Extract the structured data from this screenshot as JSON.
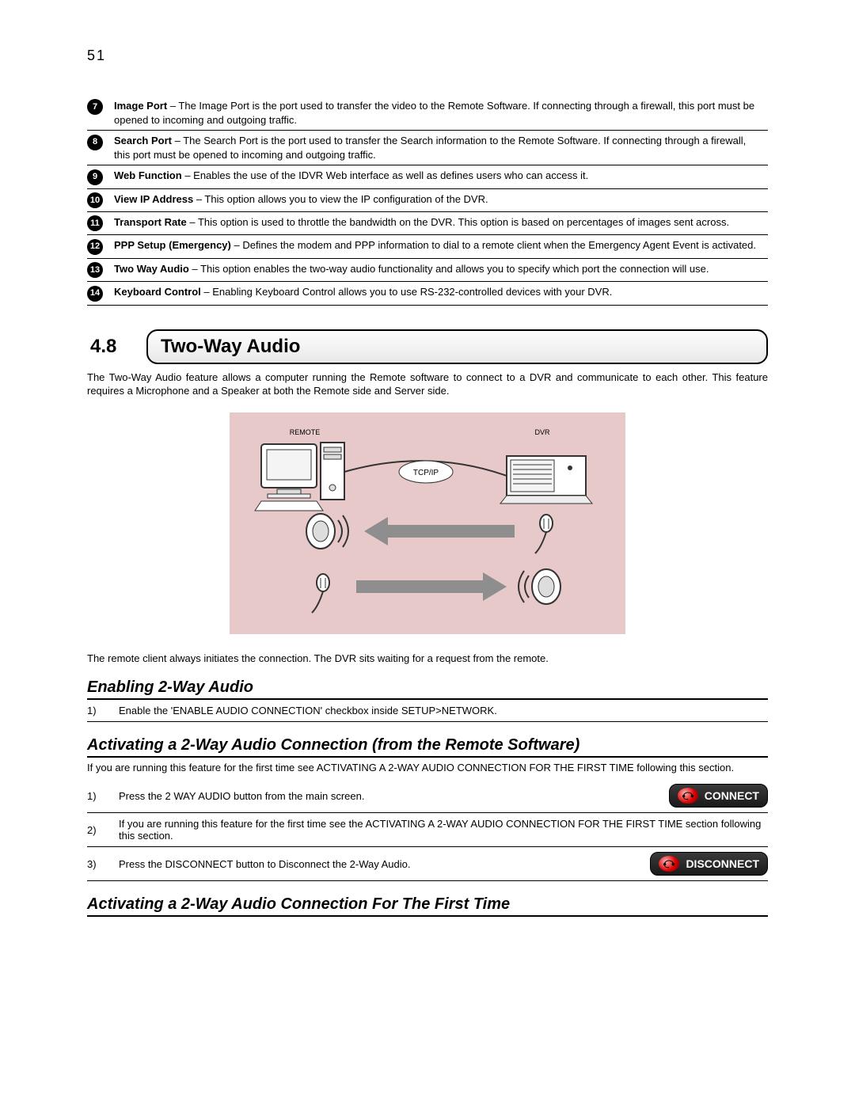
{
  "page_number": "51",
  "definitions": [
    {
      "num": "7",
      "term": "Image Port",
      "text": " – The Image Port is the port used to transfer the video to the Remote Software. If connecting through a firewall, this port must be opened to incoming and outgoing traffic."
    },
    {
      "num": "8",
      "term": "Search Port",
      "text": " – The Search Port is the port used to transfer the Search information to the Remote Software. If connecting through a firewall, this port must be opened to incoming and outgoing traffic."
    },
    {
      "num": "9",
      "term": "Web Function",
      "text": " – Enables the use of the IDVR Web interface as well as defines users who can access it."
    },
    {
      "num": "10",
      "term": "View IP Address",
      "text": " – This option allows you to view the IP configuration of the DVR."
    },
    {
      "num": "11",
      "term": "Transport Rate",
      "text": " – This option is used to throttle the bandwidth on the DVR. This option is based on percentages of images sent across.",
      "justify": true
    },
    {
      "num": "12",
      "term": "PPP Setup (Emergency)",
      "text": " – Defines the modem and PPP information to dial to a remote client when the Emergency Agent Event is activated."
    },
    {
      "num": "13",
      "term": "Two Way Audio",
      "text": " – This option enables the two-way audio functionality and allows you to specify which port the connection will use."
    },
    {
      "num": "14",
      "term": "Keyboard Control",
      "text": " – Enabling Keyboard Control allows you to use RS-232-controlled devices with your DVR."
    }
  ],
  "section": {
    "num": "4.8",
    "title": "Two-Way Audio"
  },
  "intro": "The Two-Way Audio feature allows a computer running the Remote software to connect to a DVR and communicate to each other. This feature requires a Microphone and a Speaker at both the Remote side and Server side.",
  "diagram": {
    "remote_label": "REMOTE",
    "dvr_label": "DVR",
    "link_label": "TCP/IP",
    "bg": "#e7c9c9",
    "arrow_color": "#8e8e8e",
    "line_color": "#333333"
  },
  "caption": "The remote client always initiates the connection. The DVR sits waiting for a request from the remote.",
  "sub1": {
    "title": "Enabling 2-Way Audio"
  },
  "sub1_steps": [
    {
      "n": "1)",
      "t": "Enable the 'ENABLE AUDIO CONNECTION' checkbox inside SETUP>NETWORK."
    }
  ],
  "sub2": {
    "title": "Activating a 2-Way Audio Connection (from the Remote Software)",
    "note": "If you are running this feature for the first time see ACTIVATING A 2-WAY AUDIO CONNECTION FOR THE FIRST TIME following this section."
  },
  "sub2_steps": [
    {
      "n": "1)",
      "t": "Press the 2 WAY AUDIO button from the main screen.",
      "button": "CONNECT"
    },
    {
      "n": "2)",
      "t": "If you are running this feature for the first time see the ACTIVATING A 2-WAY AUDIO CONNECTION FOR THE FIRST TIME section following this section."
    },
    {
      "n": "3)",
      "t": "Press the DISCONNECT button to Disconnect the 2-Way Audio.",
      "button": "DISCONNECT"
    }
  ],
  "sub3": {
    "title": "Activating a 2-Way Audio Connection For The First Time"
  },
  "buttons": {
    "connect": "CONNECT",
    "disconnect": "DISCONNECT"
  }
}
